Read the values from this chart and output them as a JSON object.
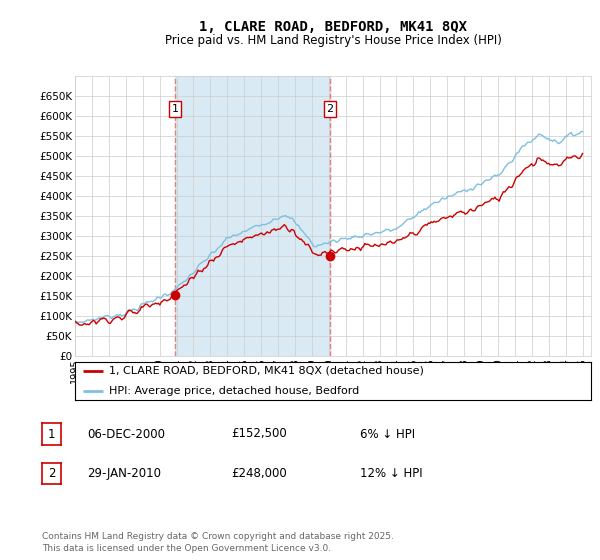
{
  "title": "1, CLARE ROAD, BEDFORD, MK41 8QX",
  "subtitle": "Price paid vs. HM Land Registry's House Price Index (HPI)",
  "ylim": [
    0,
    700000
  ],
  "yticks": [
    0,
    50000,
    100000,
    150000,
    200000,
    250000,
    300000,
    350000,
    400000,
    450000,
    500000,
    550000,
    600000,
    650000
  ],
  "hpi_color": "#7fbfdf",
  "price_color": "#cc0000",
  "vline_color": "#e08080",
  "background_color": "#ffffff",
  "grid_color": "#cccccc",
  "purchase1_year": 2000.92,
  "purchase1_price": 152500,
  "purchase2_year": 2010.08,
  "purchase2_price": 248000,
  "hpi_shade_color": "#daeaf5",
  "legend_entries": [
    {
      "label": "1, CLARE ROAD, BEDFORD, MK41 8QX (detached house)",
      "color": "#cc0000"
    },
    {
      "label": "HPI: Average price, detached house, Bedford",
      "color": "#7fbfdf"
    }
  ],
  "table_rows": [
    {
      "num": "1",
      "date": "06-DEC-2000",
      "price": "£152,500",
      "pct": "6% ↓ HPI"
    },
    {
      "num": "2",
      "date": "29-JAN-2010",
      "price": "£248,000",
      "pct": "12% ↓ HPI"
    }
  ],
  "footnote": "Contains HM Land Registry data © Crown copyright and database right 2025.\nThis data is licensed under the Open Government Licence v3.0."
}
